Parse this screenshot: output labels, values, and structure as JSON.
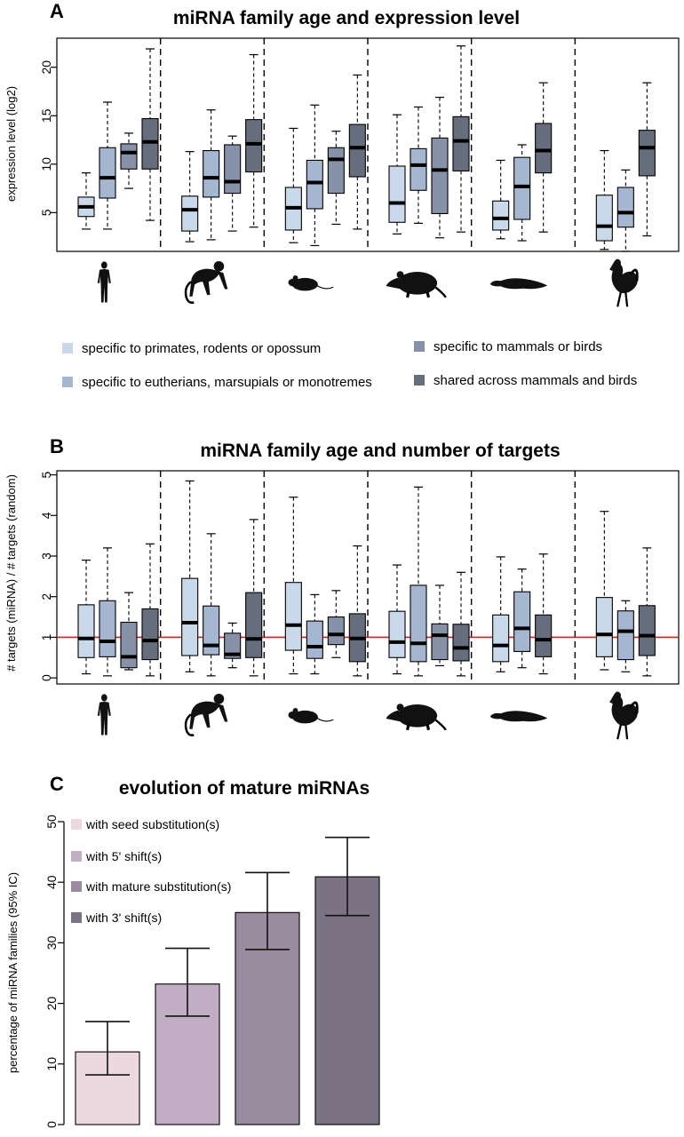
{
  "colors": {
    "age_classes": [
      "#c9d9ea",
      "#a5b6d0",
      "#8792a8",
      "#666e7d"
    ],
    "mature_classes": [
      "#ecd9e0",
      "#c2aec4",
      "#9a8b9e",
      "#7b7383"
    ],
    "reference_line": "#d02020",
    "median": "#000000"
  },
  "species_icons": [
    "human-icon",
    "macaque-icon",
    "mouse-icon",
    "opossum-icon",
    "platypus-icon",
    "chicken-icon"
  ],
  "legend_ab": [
    "specific to primates, rodents or opossum",
    "specific to eutherians, marsupials or monotremes",
    "specific to mammals or birds",
    "shared across mammals and birds"
  ],
  "chart_data": [
    {
      "panel": "A",
      "type": "boxplot",
      "title": "miRNA family age and expression level",
      "ylabel": "expression level (log2)",
      "yticks": [
        5,
        10,
        15,
        20
      ],
      "ylim": [
        1,
        23
      ],
      "series_classes": [
        "specific to primates, rodents or opossum",
        "specific to eutherians, marsupials or monotremes",
        "specific to mammals or birds",
        "shared across mammals and birds"
      ],
      "groups": [
        {
          "species": "human",
          "boxes": [
            {
              "cls": 0,
              "min": 3.3,
              "q1": 4.6,
              "med": 5.6,
              "q3": 6.6,
              "max": 9.1
            },
            {
              "cls": 1,
              "min": 3.3,
              "q1": 6.5,
              "med": 8.6,
              "q3": 11.7,
              "max": 16.4
            },
            {
              "cls": 2,
              "min": 7.5,
              "q1": 9.5,
              "med": 11.2,
              "q3": 12.1,
              "max": 13.2
            },
            {
              "cls": 3,
              "min": 4.2,
              "q1": 9.5,
              "med": 12.3,
              "q3": 14.7,
              "max": 21.9
            }
          ]
        },
        {
          "species": "macaque",
          "boxes": [
            {
              "cls": 0,
              "min": 2.0,
              "q1": 3.1,
              "med": 5.3,
              "q3": 6.7,
              "max": 11.3
            },
            {
              "cls": 1,
              "min": 2.2,
              "q1": 6.6,
              "med": 8.6,
              "q3": 11.4,
              "max": 15.6
            },
            {
              "cls": 2,
              "min": 3.1,
              "q1": 7.0,
              "med": 8.2,
              "q3": 12.0,
              "max": 12.9
            },
            {
              "cls": 3,
              "min": 3.5,
              "q1": 9.2,
              "med": 12.1,
              "q3": 14.6,
              "max": 21.3
            }
          ]
        },
        {
          "species": "mouse",
          "boxes": [
            {
              "cls": 0,
              "min": 1.9,
              "q1": 3.2,
              "med": 5.5,
              "q3": 7.6,
              "max": 13.7
            },
            {
              "cls": 1,
              "min": 1.6,
              "q1": 5.4,
              "med": 8.1,
              "q3": 10.4,
              "max": 16.1
            },
            {
              "cls": 2,
              "min": 3.8,
              "q1": 7.0,
              "med": 10.5,
              "q3": 11.7,
              "max": 13.4
            },
            {
              "cls": 3,
              "min": 3.3,
              "q1": 8.7,
              "med": 11.7,
              "q3": 14.1,
              "max": 19.2
            }
          ]
        },
        {
          "species": "opossum",
          "boxes": [
            {
              "cls": 0,
              "min": 2.8,
              "q1": 4.0,
              "med": 6.0,
              "q3": 9.8,
              "max": 15.1
            },
            {
              "cls": 1,
              "min": 3.9,
              "q1": 7.3,
              "med": 9.9,
              "q3": 11.6,
              "max": 15.9
            },
            {
              "cls": 2,
              "min": 2.4,
              "q1": 4.9,
              "med": 9.4,
              "q3": 12.7,
              "max": 16.9
            },
            {
              "cls": 3,
              "min": 3.0,
              "q1": 9.3,
              "med": 12.4,
              "q3": 14.9,
              "max": 22.2
            }
          ]
        },
        {
          "species": "platypus",
          "boxes": [
            {
              "cls": 0,
              "min": 2.3,
              "q1": 3.2,
              "med": 4.4,
              "q3": 6.2,
              "max": 10.4
            },
            {
              "cls": 1,
              "min": 2.1,
              "q1": 4.3,
              "med": 7.7,
              "q3": 10.7,
              "max": 12.0
            },
            {
              "cls": 3,
              "min": 3.0,
              "q1": 9.1,
              "med": 11.4,
              "q3": 14.2,
              "max": 18.4
            }
          ]
        },
        {
          "species": "chicken",
          "boxes": [
            {
              "cls": 0,
              "min": 1.2,
              "q1": 2.1,
              "med": 3.6,
              "q3": 6.8,
              "max": 11.4
            },
            {
              "cls": 1,
              "min": 1.0,
              "q1": 3.5,
              "med": 5.0,
              "q3": 7.6,
              "max": 9.4
            },
            {
              "cls": 3,
              "min": 2.6,
              "q1": 8.8,
              "med": 11.7,
              "q3": 13.5,
              "max": 18.4
            }
          ]
        }
      ]
    },
    {
      "panel": "B",
      "type": "boxplot",
      "title": "miRNA family age and number of targets",
      "ylabel": "# targets (miRNA) / # targets (random)",
      "yticks": [
        0,
        1,
        2,
        3,
        4,
        5
      ],
      "ylim": [
        -0.15,
        5.1
      ],
      "reference_y": 1,
      "groups": [
        {
          "species": "human",
          "boxes": [
            {
              "cls": 0,
              "min": 0.1,
              "q1": 0.5,
              "med": 0.97,
              "q3": 1.8,
              "max": 2.9
            },
            {
              "cls": 1,
              "min": 0.05,
              "q1": 0.52,
              "med": 0.9,
              "q3": 1.9,
              "max": 3.2
            },
            {
              "cls": 2,
              "min": 0.2,
              "q1": 0.25,
              "med": 0.52,
              "q3": 1.37,
              "max": 2.1
            },
            {
              "cls": 3,
              "min": 0.05,
              "q1": 0.45,
              "med": 0.92,
              "q3": 1.7,
              "max": 3.3
            }
          ]
        },
        {
          "species": "macaque",
          "boxes": [
            {
              "cls": 0,
              "min": 0.15,
              "q1": 0.55,
              "med": 1.36,
              "q3": 2.45,
              "max": 4.85
            },
            {
              "cls": 1,
              "min": 0.05,
              "q1": 0.57,
              "med": 0.8,
              "q3": 1.77,
              "max": 3.55
            },
            {
              "cls": 2,
              "min": 0.25,
              "q1": 0.48,
              "med": 0.58,
              "q3": 1.1,
              "max": 1.35
            },
            {
              "cls": 3,
              "min": 0.05,
              "q1": 0.5,
              "med": 0.96,
              "q3": 2.1,
              "max": 3.9
            }
          ]
        },
        {
          "species": "mouse",
          "boxes": [
            {
              "cls": 0,
              "min": 0.1,
              "q1": 0.68,
              "med": 1.3,
              "q3": 2.35,
              "max": 4.45
            },
            {
              "cls": 1,
              "min": 0.1,
              "q1": 0.48,
              "med": 0.77,
              "q3": 1.4,
              "max": 2.05
            },
            {
              "cls": 2,
              "min": 0.5,
              "q1": 0.82,
              "med": 1.07,
              "q3": 1.5,
              "max": 2.15
            },
            {
              "cls": 3,
              "min": 0.05,
              "q1": 0.4,
              "med": 0.97,
              "q3": 1.58,
              "max": 3.25
            }
          ]
        },
        {
          "species": "opossum",
          "boxes": [
            {
              "cls": 0,
              "min": 0.1,
              "q1": 0.5,
              "med": 0.88,
              "q3": 1.64,
              "max": 2.78
            },
            {
              "cls": 1,
              "min": 0.05,
              "q1": 0.4,
              "med": 0.85,
              "q3": 2.28,
              "max": 4.7
            },
            {
              "cls": 2,
              "min": 0.3,
              "q1": 0.45,
              "med": 1.05,
              "q3": 1.33,
              "max": 2.28
            },
            {
              "cls": 3,
              "min": 0.05,
              "q1": 0.42,
              "med": 0.74,
              "q3": 1.32,
              "max": 2.6
            }
          ]
        },
        {
          "species": "platypus",
          "boxes": [
            {
              "cls": 0,
              "min": 0.15,
              "q1": 0.4,
              "med": 0.8,
              "q3": 1.55,
              "max": 2.98
            },
            {
              "cls": 1,
              "min": 0.25,
              "q1": 0.65,
              "med": 1.22,
              "q3": 2.12,
              "max": 2.68
            },
            {
              "cls": 3,
              "min": 0.1,
              "q1": 0.52,
              "med": 0.94,
              "q3": 1.55,
              "max": 3.05
            }
          ]
        },
        {
          "species": "chicken",
          "boxes": [
            {
              "cls": 0,
              "min": 0.2,
              "q1": 0.52,
              "med": 1.07,
              "q3": 1.98,
              "max": 4.1
            },
            {
              "cls": 1,
              "min": 0.15,
              "q1": 0.45,
              "med": 1.15,
              "q3": 1.65,
              "max": 1.9
            },
            {
              "cls": 3,
              "min": 0.05,
              "q1": 0.55,
              "med": 1.04,
              "q3": 1.78,
              "max": 3.2
            }
          ]
        }
      ]
    },
    {
      "panel": "C",
      "type": "bar",
      "title": "evolution of mature miRNAs",
      "ylabel": "percentage of miRNA families (95% IC)",
      "yticks": [
        0,
        10,
        20,
        30,
        40,
        50
      ],
      "ylim": [
        0,
        50
      ],
      "categories": [
        "with seed substitution(s)",
        "with 5' shift(s)",
        "with mature substitution(s)",
        "with 3' shift(s)"
      ],
      "values": [
        12.0,
        23.2,
        35.0,
        40.9
      ],
      "ci_low": [
        8.2,
        17.9,
        28.9,
        34.5
      ],
      "ci_high": [
        17.0,
        29.1,
        41.6,
        47.4
      ]
    }
  ]
}
